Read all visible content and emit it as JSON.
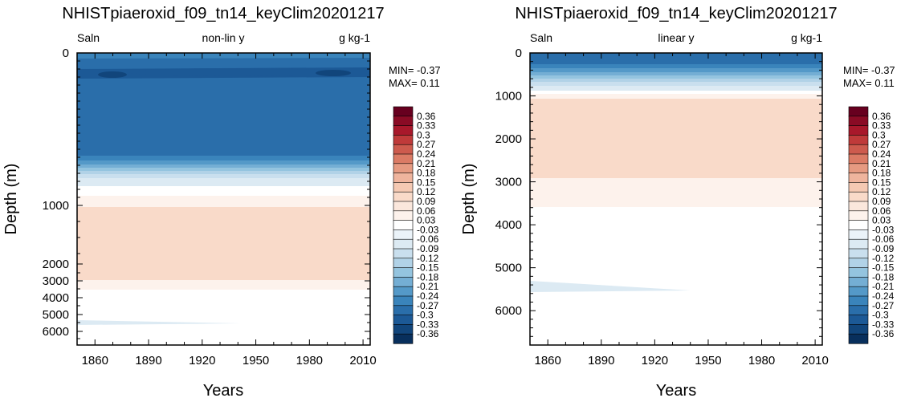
{
  "chart_data": [
    {
      "type": "heatmap",
      "title": "NHISTpiaeroxid_f09_tn14_keyClim20201217",
      "left_label": "Saln",
      "center_label": "non-lin y",
      "right_label": "g kg-1",
      "xlabel": "Years",
      "ylabel": "Depth (m)",
      "xlim": [
        1850,
        2014
      ],
      "x_ticks": [
        1860,
        1890,
        1920,
        1950,
        1980,
        2010
      ],
      "y_scale": "non-linear",
      "y_ticks": [
        "0",
        "1000",
        "2000",
        "3000",
        "4000",
        "5000",
        "6000"
      ],
      "min_label": "MIN= -0.37",
      "max_label": "MAX=  0.11"
    },
    {
      "type": "heatmap",
      "title": "NHISTpiaeroxid_f09_tn14_keyClim20201217",
      "left_label": "Saln",
      "center_label": "linear y",
      "right_label": "g kg-1",
      "xlabel": "Years",
      "ylabel": "Depth (m)",
      "xlim": [
        1850,
        2014
      ],
      "x_ticks": [
        1860,
        1890,
        1920,
        1950,
        1980,
        2010
      ],
      "y_scale": "linear",
      "ylim": [
        0,
        6800
      ],
      "y_ticks": [
        "0",
        "1000",
        "2000",
        "3000",
        "4000",
        "5000",
        "6000"
      ],
      "min_label": "MIN= -0.37",
      "max_label": "MAX=  0.11"
    }
  ],
  "colorbar": {
    "levels": [
      "0.36",
      "0.33",
      "0.3",
      "0.27",
      "0.24",
      "0.21",
      "0.18",
      "0.15",
      "0.12",
      "0.09",
      "0.06",
      "0.03",
      "-0.03",
      "-0.06",
      "-0.09",
      "-0.12",
      "-0.15",
      "-0.18",
      "-0.21",
      "-0.24",
      "-0.27",
      "-0.3",
      "-0.33",
      "-0.36"
    ],
    "colors": [
      "#67001f",
      "#8a0b25",
      "#a8182b",
      "#bf3a3a",
      "#cd5b4e",
      "#db7b65",
      "#e69a81",
      "#efb49d",
      "#f5c9b3",
      "#f9dac9",
      "#fbe7dc",
      "#fdf2ec",
      "#ffffff",
      "#ebf3f9",
      "#dceaf3",
      "#c9dfee",
      "#b1d2e7",
      "#94c4df",
      "#74aed4",
      "#5499c8",
      "#3a84bb",
      "#2a6eaa",
      "#1c5996",
      "#11457b",
      "#082f5c"
    ]
  }
}
